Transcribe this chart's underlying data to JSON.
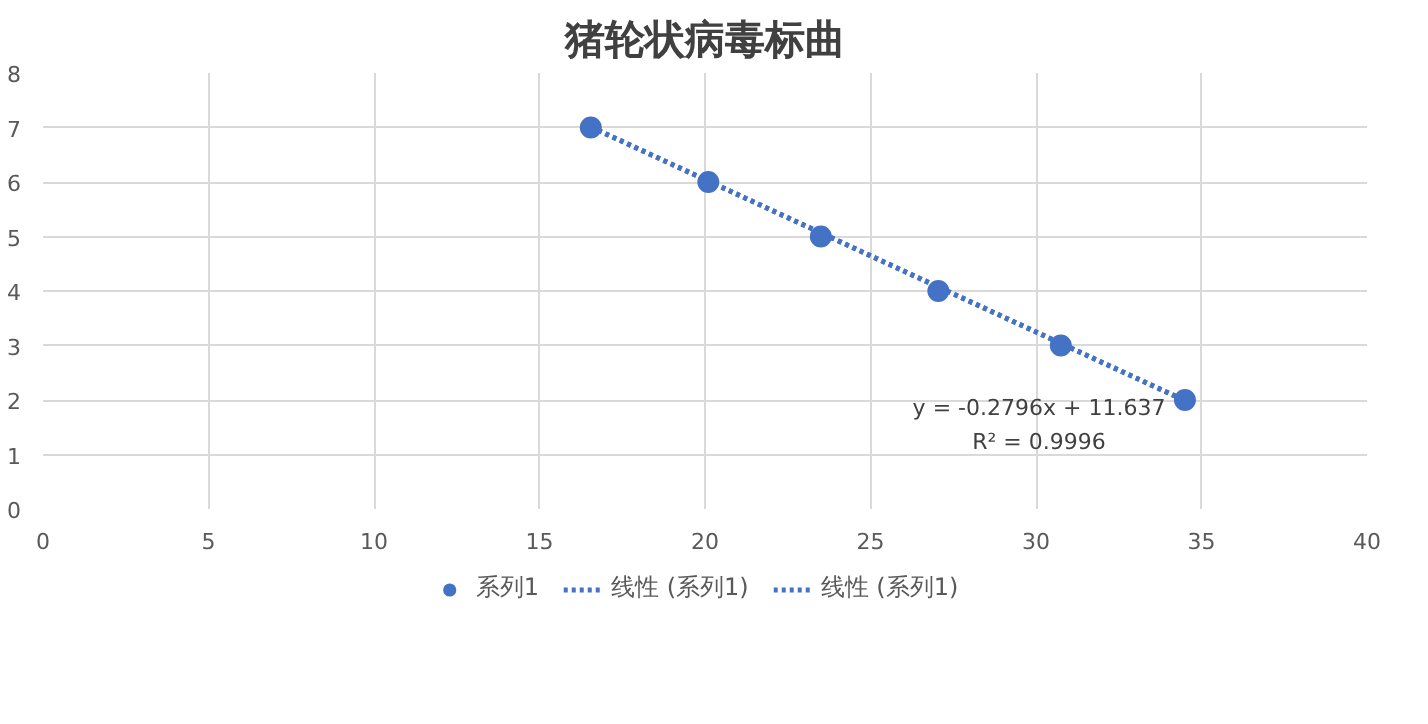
{
  "chart_data": {
    "type": "scatter",
    "title": "猪轮状病毒标曲",
    "series": [
      {
        "name": "系列1",
        "color": "#4472c4",
        "x": [
          16.55,
          20.1,
          23.5,
          27.05,
          30.75,
          34.5
        ],
        "values": [
          7,
          6,
          5,
          4,
          3,
          2
        ],
        "marker": "circle"
      },
      {
        "name": "线性 (系列1)",
        "type": "line",
        "color": "#4472c4",
        "x": [
          16.55,
          34.5
        ],
        "values": [
          7.01,
          1.99
        ],
        "line_style": "dotted"
      },
      {
        "name": "线性 (系列1)",
        "type": "line",
        "color": "#4472c4",
        "x": [
          16.55,
          34.5
        ],
        "values": [
          7.01,
          1.99
        ],
        "line_style": "dotted"
      }
    ],
    "annotations": [
      "y = -0.2796x + 11.637",
      "R² = 0.9996"
    ],
    "xlim": [
      0,
      40
    ],
    "xticks": [
      0,
      5,
      10,
      15,
      20,
      25,
      30,
      35,
      40
    ],
    "ylim": [
      0,
      8
    ],
    "yticks": [
      0,
      1,
      2,
      3,
      4,
      5,
      6,
      7,
      8
    ],
    "grid": true,
    "legend": "bottom"
  }
}
